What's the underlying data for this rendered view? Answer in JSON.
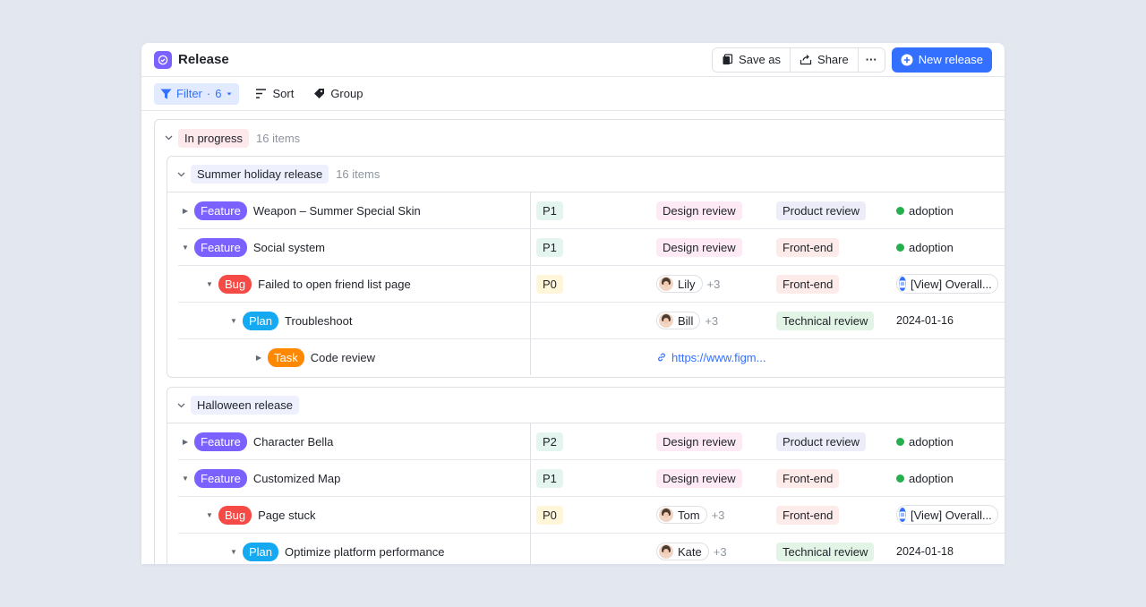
{
  "header": {
    "title": "Release",
    "save_as": "Save as",
    "share": "Share",
    "more": "···",
    "new_release": "New release"
  },
  "toolbar": {
    "filter": "Filter",
    "filter_sep": "·",
    "filter_count": "6",
    "sort": "Sort",
    "group": "Group"
  },
  "group": {
    "label": "In progress",
    "count": "16 items"
  },
  "subgroups": [
    {
      "label": "Summer holiday release",
      "count": "16 items",
      "rows": [
        {
          "type": "Feature",
          "title": "Weapon – Summer Special Skin",
          "priority": "P1",
          "stage": "Design review",
          "phase": "Product review",
          "status": "adoption"
        },
        {
          "type": "Feature",
          "title": "Social system",
          "priority": "P1",
          "stage": "Design review",
          "phase": "Front-end",
          "status": "adoption"
        },
        {
          "type": "Bug",
          "title": "Failed to open friend list page",
          "priority": "P0",
          "person": "Lily",
          "extra": "+3",
          "phase": "Front-end",
          "doc": "[View] Overall..."
        },
        {
          "type": "Plan",
          "title": "Troubleshoot",
          "person": "Bill",
          "extra": "+3",
          "phase": "Technical review",
          "date": "2024-01-16"
        },
        {
          "type": "Task",
          "title": "Code review",
          "link": "https://www.figm..."
        }
      ]
    },
    {
      "label": "Halloween release",
      "rows": [
        {
          "type": "Feature",
          "title": "Character Bella",
          "priority": "P2",
          "stage": "Design review",
          "phase": "Product review",
          "status": "adoption"
        },
        {
          "type": "Feature",
          "title": "Customized Map",
          "priority": "P1",
          "stage": "Design review",
          "phase": "Front-end",
          "status": "adoption"
        },
        {
          "type": "Bug",
          "title": "Page stuck",
          "priority": "P0",
          "person": "Tom",
          "extra": "+3",
          "phase": "Front-end",
          "doc": "[View] Overall..."
        },
        {
          "type": "Plan",
          "title": "Optimize platform performance",
          "person": "Kate",
          "extra": "+3",
          "phase": "Technical review",
          "date": "2024-01-18"
        }
      ]
    }
  ],
  "colors": {
    "accent": "#3370ff",
    "feature": "#7b61ff",
    "bug": "#f54a45",
    "plan": "#14a9f0",
    "task": "#ff8800",
    "status_dot": "#26b04d"
  }
}
